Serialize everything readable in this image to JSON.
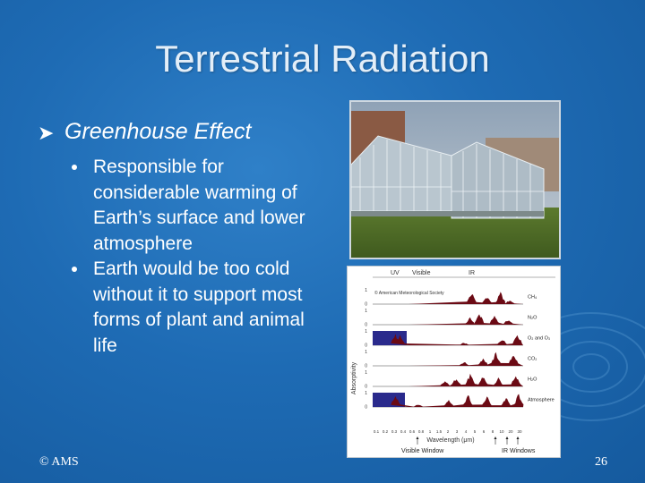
{
  "slide": {
    "title": "Terrestrial Radiation",
    "level1": "Greenhouse Effect",
    "bullets": [
      "Responsible for considerable warming of Earth’s surface and lower atmosphere",
      "Earth would be too cold without it to support most forms of plant and animal life"
    ],
    "footer_left": "© AMS",
    "slide_number": "26"
  },
  "figure": {
    "band_uv": "UV",
    "band_visible": "Visible",
    "band_ir": "IR",
    "credit": "© American Meteorological Society",
    "y_axis_label": "Absorptivity",
    "tick_one": "1",
    "tick_zero": "0",
    "gases": [
      "CH₄",
      "N₂O",
      "O₂ and O₃",
      "CO₂",
      "H₂O",
      "Atmosphere"
    ],
    "x_ticks": [
      "0.1",
      "0.2",
      "0.3",
      "0.4",
      "0.6",
      "0.8",
      "1",
      "1.5",
      "2",
      "3",
      "4",
      "5",
      "6",
      "8",
      "10",
      "20",
      "30"
    ],
    "x_axis_label": "Wavelength (μm)",
    "visible_window": "Visible Window",
    "ir_windows": "IR Windows",
    "absorption_color": "#6b0a14",
    "uv_block_color": "#2a2a8c"
  }
}
